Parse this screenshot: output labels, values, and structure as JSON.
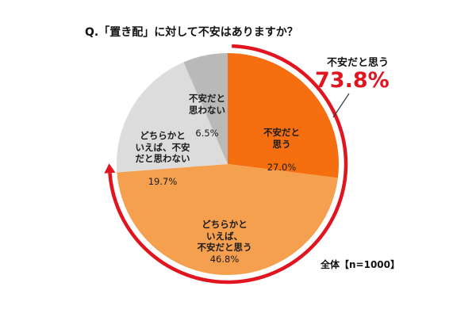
{
  "title": "Q.「置き配」に対して不安はありますか？",
  "callout": {
    "label": "不安だと思う",
    "value": "73.8%"
  },
  "sample_note": "全体【n=1000】",
  "colors": {
    "slice1": "#f56f10",
    "slice2": "#f5a04e",
    "slice3": "#dcdcdc",
    "slice4": "#b9b9b9",
    "arc": "#e0151f"
  },
  "chart_data": {
    "type": "pie",
    "title": "Q.「置き配」に対して不安はありますか？",
    "slices": [
      {
        "label": "不安だと\n思う",
        "value": 27.0,
        "value_label": "27.0%"
      },
      {
        "label": "どちらかと\nいえば、\n不安だと思う",
        "value": 46.8,
        "value_label": "46.8%"
      },
      {
        "label": "どちらかと\nいえば、不安\nだと思わない",
        "value": 19.7,
        "value_label": "19.7%"
      },
      {
        "label": "不安だと\n思わない",
        "value": 6.5,
        "value_label": "6.5%"
      }
    ],
    "highlight": {
      "label": "不安だと思う",
      "value": 73.8,
      "value_label": "73.8%"
    }
  }
}
